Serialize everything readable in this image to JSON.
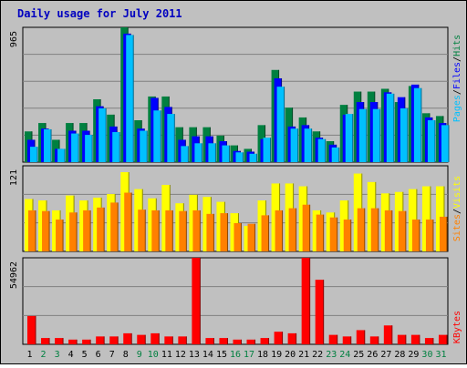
{
  "title": "Daily usage for July 2011",
  "colors": {
    "background": "#c0c0c0",
    "plot_bg": "#c0c0c0",
    "title": "#0000c0",
    "hits": "#008040",
    "files": "#0000ff",
    "pages": "#00c0ff",
    "visits": "#ffff00",
    "sites": "#ff8000",
    "kbytes": "#ff0000",
    "weekend_day": "#008040",
    "weekday": "#000000"
  },
  "chart_data": [
    {
      "type": "bar",
      "name": "hits-files-pages",
      "categories": [
        "1",
        "2",
        "3",
        "4",
        "5",
        "6",
        "7",
        "8",
        "9",
        "10",
        "11",
        "12",
        "13",
        "14",
        "15",
        "16",
        "17",
        "18",
        "19",
        "20",
        "21",
        "22",
        "23",
        "24",
        "25",
        "26",
        "27",
        "28",
        "29",
        "30",
        "31"
      ],
      "weekend_days": [
        "2",
        "3",
        "9",
        "10",
        "16",
        "17",
        "23",
        "24",
        "30",
        "31"
      ],
      "ylim": [
        0,
        965
      ],
      "ytick_label": "965",
      "legend": {
        "hits": "Hits",
        "files": "Files",
        "pages": "Pages",
        "separator": "/"
      },
      "series": [
        {
          "name": "Hits",
          "values": [
            220,
            280,
            160,
            280,
            280,
            450,
            340,
            965,
            300,
            470,
            470,
            250,
            250,
            250,
            190,
            120,
            95,
            265,
            660,
            390,
            320,
            220,
            150,
            410,
            505,
            505,
            525,
            430,
            545,
            350,
            330
          ]
        },
        {
          "name": "Files",
          "values": [
            160,
            240,
            95,
            225,
            225,
            400,
            255,
            920,
            240,
            460,
            395,
            160,
            185,
            185,
            150,
            80,
            75,
            165,
            600,
            255,
            265,
            175,
            125,
            340,
            430,
            430,
            500,
            465,
            555,
            320,
            280
          ]
        },
        {
          "name": "Pages",
          "values": [
            110,
            235,
            95,
            205,
            195,
            385,
            215,
            910,
            225,
            370,
            345,
            115,
            135,
            135,
            120,
            70,
            60,
            175,
            540,
            240,
            240,
            165,
            105,
            345,
            380,
            380,
            490,
            385,
            530,
            300,
            265
          ]
        }
      ]
    },
    {
      "type": "bar",
      "name": "visits-sites",
      "categories": [
        "1",
        "2",
        "3",
        "4",
        "5",
        "6",
        "7",
        "8",
        "9",
        "10",
        "11",
        "12",
        "13",
        "14",
        "15",
        "16",
        "17",
        "18",
        "19",
        "20",
        "21",
        "22",
        "23",
        "24",
        "25",
        "26",
        "27",
        "28",
        "29",
        "30",
        "31"
      ],
      "ylim": [
        0,
        121
      ],
      "ytick_label": "121",
      "legend": {
        "visits": "Visits",
        "sites": "Sites",
        "separator": "/"
      },
      "series": [
        {
          "name": "Visits",
          "values": [
            74,
            72,
            58,
            79,
            72,
            76,
            81,
            112,
            88,
            75,
            94,
            68,
            80,
            77,
            70,
            54,
            36,
            72,
            96,
            96,
            92,
            58,
            55,
            72,
            110,
            98,
            82,
            84,
            88,
            92,
            92
          ]
        },
        {
          "name": "Sites",
          "values": [
            58,
            57,
            45,
            55,
            58,
            62,
            69,
            83,
            59,
            58,
            58,
            57,
            58,
            53,
            54,
            40,
            39,
            51,
            58,
            61,
            66,
            52,
            48,
            45,
            61,
            61,
            58,
            57,
            45,
            45,
            49
          ]
        }
      ]
    },
    {
      "type": "bar",
      "name": "kbytes",
      "categories": [
        "1",
        "2",
        "3",
        "4",
        "5",
        "6",
        "7",
        "8",
        "9",
        "10",
        "11",
        "12",
        "13",
        "14",
        "15",
        "16",
        "17",
        "18",
        "19",
        "20",
        "21",
        "22",
        "23",
        "24",
        "25",
        "26",
        "27",
        "28",
        "29",
        "30",
        "31"
      ],
      "ylim": [
        0,
        54962
      ],
      "ytick_label": "54962",
      "legend": {
        "kbytes": "KBytes"
      },
      "series": [
        {
          "name": "KBytes",
          "values": [
            18000,
            4000,
            4000,
            3000,
            3000,
            5000,
            5000,
            7000,
            6000,
            7000,
            5000,
            5000,
            54962,
            4000,
            4000,
            3000,
            3000,
            4000,
            8000,
            7000,
            54962,
            41000,
            6000,
            5000,
            9000,
            5000,
            12000,
            6000,
            6000,
            4000,
            6000
          ]
        }
      ]
    }
  ]
}
